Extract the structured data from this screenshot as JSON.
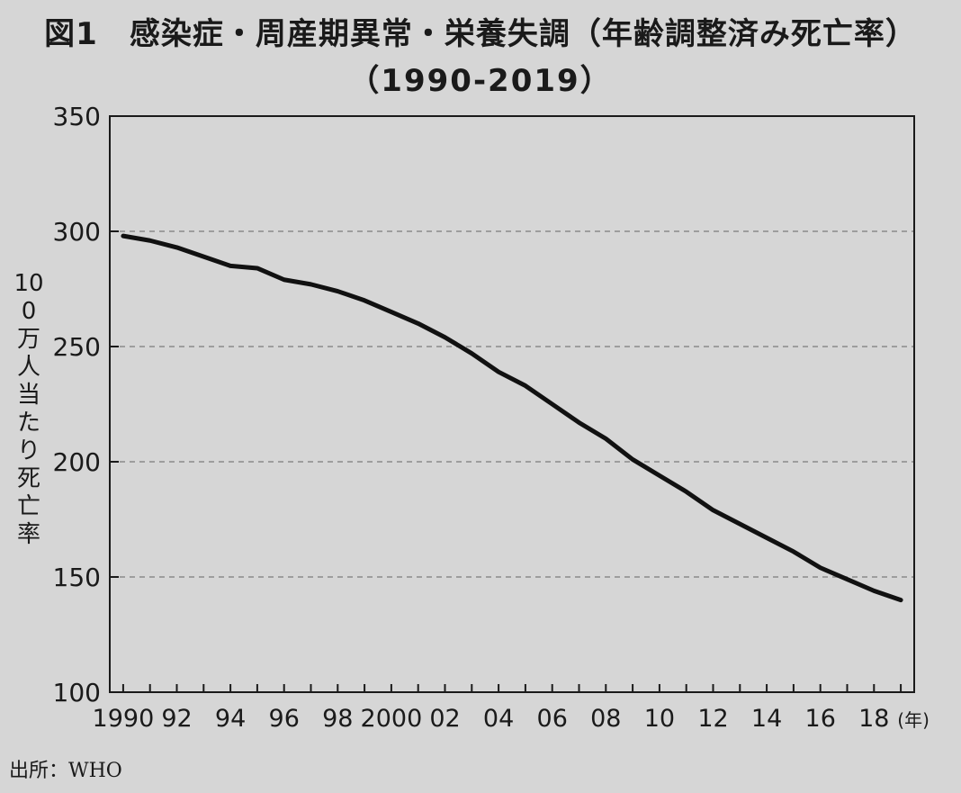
{
  "figure": {
    "title_line1": "図1　感染症・周産期異常・栄養失調（年齢調整済み死亡率）",
    "title_line2": "（1990-2019）",
    "source": "出所：WHO"
  },
  "chart_data": {
    "type": "line",
    "title": "図1　感染症・周産期異常・栄養失調（年齢調整済み死亡率）（1990-2019）",
    "xlabel": "(年)",
    "ylabel": "100万人当たり死亡率",
    "ylim": [
      100,
      350
    ],
    "yticks": [
      100,
      150,
      200,
      250,
      300,
      350
    ],
    "xlim": [
      1989.5,
      2019.5
    ],
    "xticks": [
      {
        "x": 1990,
        "label": "1990"
      },
      {
        "x": 1992,
        "label": "92"
      },
      {
        "x": 1994,
        "label": "94"
      },
      {
        "x": 1996,
        "label": "96"
      },
      {
        "x": 1998,
        "label": "98"
      },
      {
        "x": 2000,
        "label": "2000"
      },
      {
        "x": 2002,
        "label": "02"
      },
      {
        "x": 2004,
        "label": "04"
      },
      {
        "x": 2006,
        "label": "06"
      },
      {
        "x": 2008,
        "label": "08"
      },
      {
        "x": 2010,
        "label": "10"
      },
      {
        "x": 2012,
        "label": "12"
      },
      {
        "x": 2014,
        "label": "14"
      },
      {
        "x": 2016,
        "label": "16"
      },
      {
        "x": 2018,
        "label": "18"
      }
    ],
    "grid": "horizontal dashed",
    "series": [
      {
        "name": "",
        "color": "#111111",
        "x": [
          1990,
          1991,
          1992,
          1993,
          1994,
          1995,
          1996,
          1997,
          1998,
          1999,
          2000,
          2001,
          2002,
          2003,
          2004,
          2005,
          2006,
          2007,
          2008,
          2009,
          2010,
          2011,
          2012,
          2013,
          2014,
          2015,
          2016,
          2017,
          2018,
          2019
        ],
        "y": [
          298,
          296,
          293,
          289,
          285,
          284,
          279,
          277,
          274,
          270,
          265,
          260,
          254,
          247,
          239,
          233,
          225,
          217,
          210,
          201,
          194,
          187,
          179,
          173,
          167,
          161,
          154,
          149,
          144,
          140
        ]
      }
    ]
  }
}
